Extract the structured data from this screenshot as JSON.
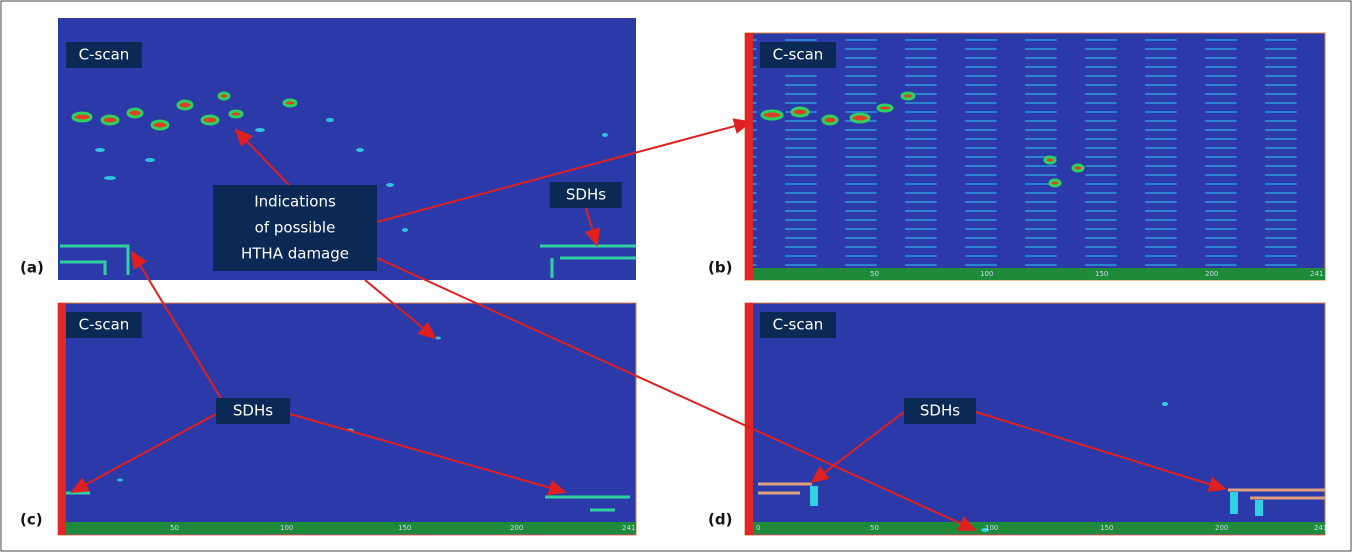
{
  "panels": [
    {
      "label": "(a)",
      "tag": "C-scan"
    },
    {
      "label": "(b)",
      "tag": "C-scan",
      "scale": [
        "50",
        "100",
        "150",
        "200",
        "241"
      ]
    },
    {
      "label": "(c)",
      "tag": "C-scan",
      "scale": [
        "50",
        "100",
        "150",
        "200",
        "241"
      ]
    },
    {
      "label": "(d)",
      "tag": "C-scan",
      "scale": [
        "0",
        "50",
        "100",
        "150",
        "200",
        "241"
      ]
    }
  ],
  "annotations": {
    "htha": [
      "Indications",
      "of possible",
      "HTHA damage"
    ],
    "sdh_a": "SDHs",
    "sdh_c": "SDHs",
    "sdh_d": "SDHs"
  }
}
